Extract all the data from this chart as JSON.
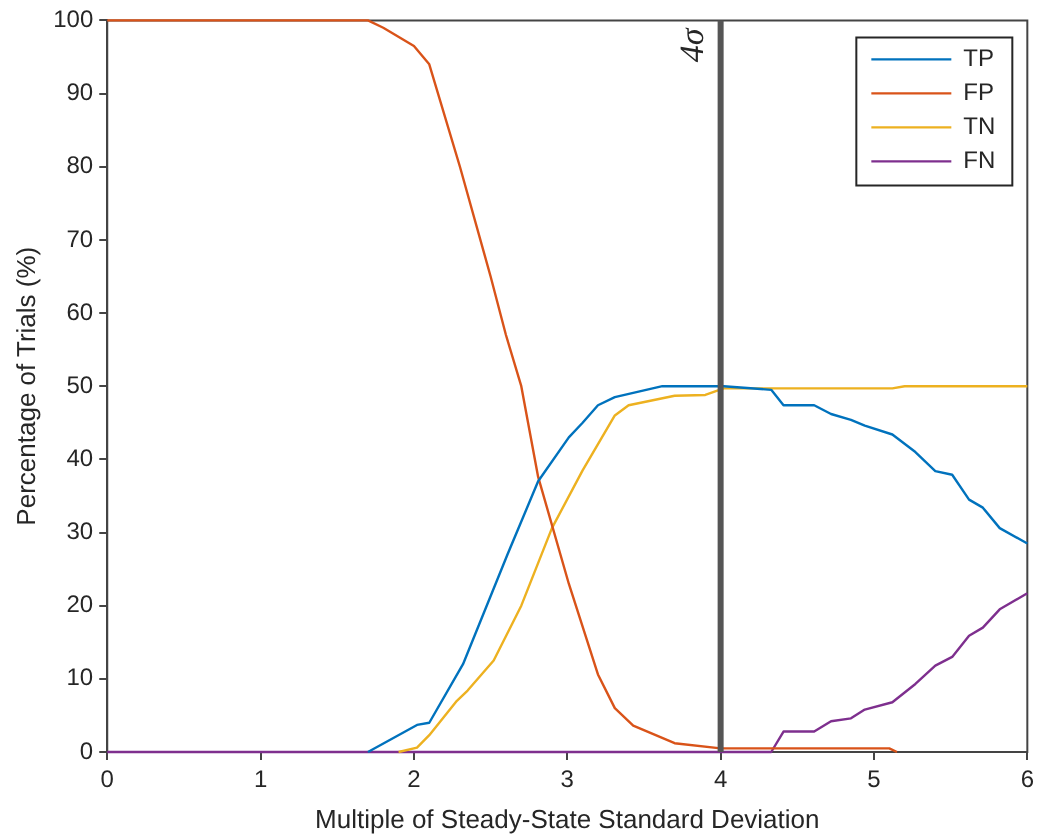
{
  "chart_data": {
    "type": "line",
    "xlabel": "Multiple of Steady-State Standard Deviation",
    "ylabel": "Percentage of Trials (%)",
    "xlim": [
      0,
      6
    ],
    "xticks": [
      0,
      1,
      2,
      3,
      4,
      5,
      6
    ],
    "ylim": [
      0,
      100
    ],
    "yticks": [
      0,
      10,
      20,
      30,
      40,
      50,
      60,
      70,
      80,
      90,
      100
    ],
    "grid": false,
    "legend": "top right",
    "marker": "none",
    "line_style": "solid",
    "series": [
      {
        "name": "TP",
        "color": "#0072bd",
        "x": [
          1.7,
          2.02,
          2.1,
          2.32,
          2.61,
          2.81,
          3.01,
          3.1,
          3.2,
          3.31,
          3.62,
          4.02,
          4.33,
          4.41,
          4.61,
          4.72,
          4.85,
          4.94,
          5.12,
          5.27,
          5.4,
          5.51,
          5.62,
          5.71,
          5.82,
          6.0
        ],
        "values": [
          0,
          3.7,
          4,
          12,
          27,
          37,
          43,
          45,
          47.4,
          48.5,
          50,
          50,
          49.5,
          47.4,
          47.4,
          46.2,
          45.4,
          44.6,
          43.4,
          41,
          38.4,
          37.9,
          34.5,
          33.4,
          30.6,
          28.5
        ]
      },
      {
        "name": "FP",
        "color": "#d95319",
        "x": [
          0,
          1.7,
          1.8,
          2.0,
          2.1,
          2.3,
          2.5,
          2.6,
          2.7,
          2.81,
          3.01,
          3.2,
          3.31,
          3.43,
          3.7,
          4.0,
          5.1,
          5.15
        ],
        "values": [
          100,
          100,
          99,
          96.5,
          94,
          80,
          65,
          57,
          50,
          37.6,
          23,
          10.6,
          6,
          3.6,
          1.2,
          0.5,
          0.5,
          0
        ]
      },
      {
        "name": "TN",
        "color": "#edb120",
        "x": [
          1.9,
          2.02,
          2.1,
          2.28,
          2.35,
          2.52,
          2.7,
          2.9,
          3.1,
          3.31,
          3.4,
          3.7,
          3.9,
          4.02,
          5.12,
          5.2,
          6.0
        ],
        "values": [
          0,
          0.6,
          2.3,
          7,
          8.4,
          12.5,
          20,
          30.6,
          38.5,
          46,
          47.4,
          48.7,
          48.8,
          49.7,
          49.7,
          50,
          50
        ]
      },
      {
        "name": "FN",
        "color": "#7e2f8e",
        "x": [
          0,
          4.33,
          4.41,
          4.61,
          4.72,
          4.85,
          4.94,
          5.12,
          5.27,
          5.4,
          5.51,
          5.62,
          5.71,
          5.82,
          6.0
        ],
        "values": [
          0,
          0,
          2.8,
          2.8,
          4.2,
          4.6,
          5.8,
          6.8,
          9.3,
          11.8,
          13,
          15.9,
          17,
          19.5,
          21.7
        ]
      }
    ],
    "ref_lines": [
      {
        "axis": "x",
        "value": 4,
        "label": "4σ",
        "color": "#555555",
        "line_style": "solid"
      }
    ]
  }
}
